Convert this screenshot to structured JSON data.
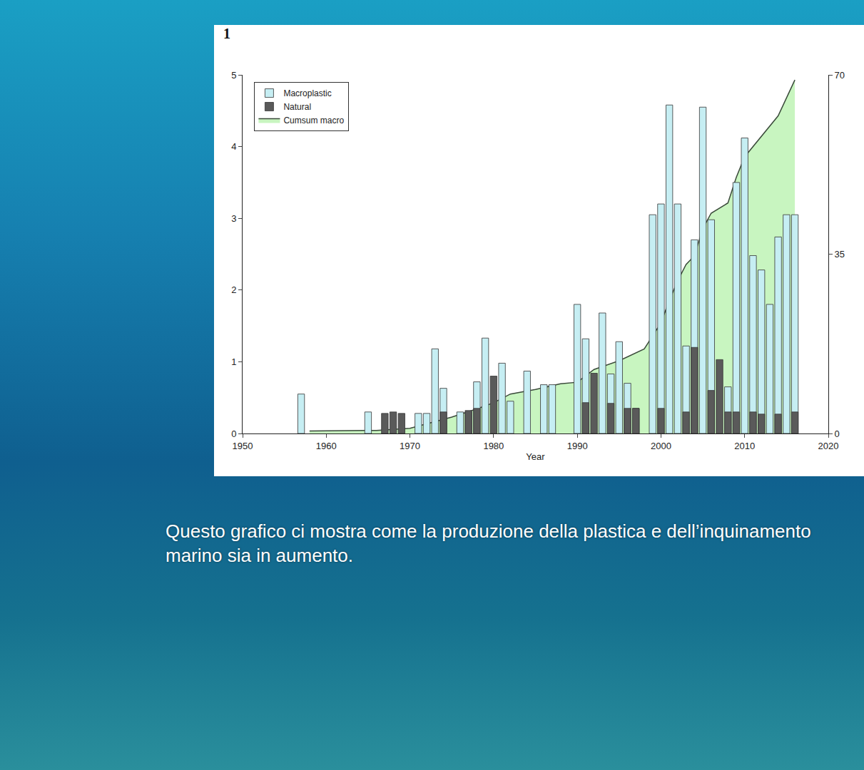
{
  "chart_data": {
    "type": "bar",
    "panel_label": "1",
    "xlabel": "Year",
    "xlim": [
      1950,
      2020
    ],
    "xticks": [
      1950,
      1960,
      1970,
      1980,
      1990,
      2000,
      2010,
      2020
    ],
    "ylim": [
      0,
      5
    ],
    "yticks": [
      0,
      1,
      2,
      3,
      4,
      5
    ],
    "y2lim": [
      0,
      70
    ],
    "y2ticks": [
      0,
      35,
      70
    ],
    "grid": false,
    "legend": "top-left",
    "series": [
      {
        "name": "Macroplastic",
        "type": "bar",
        "color": "#c6eef3",
        "x": [
          1957,
          1965,
          1971,
          1972,
          1973,
          1974,
          1976,
          1977,
          1978,
          1979,
          1981,
          1982,
          1984,
          1986,
          1987,
          1990,
          1991,
          1993,
          1994,
          1995,
          1996,
          1997,
          1999,
          2000,
          2001,
          2002,
          2003,
          2004,
          2005,
          2006,
          2008,
          2009,
          2010,
          2011,
          2012,
          2013,
          2014,
          2015,
          2016
        ],
        "values": [
          0.55,
          0.3,
          0.28,
          0.28,
          1.18,
          0.63,
          0.3,
          0.3,
          0.72,
          1.33,
          0.98,
          0.45,
          0.87,
          0.68,
          0.68,
          1.8,
          1.32,
          1.68,
          0.83,
          1.28,
          0.7,
          0.35,
          3.05,
          3.2,
          4.58,
          3.2,
          1.22,
          2.7,
          4.55,
          2.98,
          0.65,
          3.5,
          4.12,
          2.48,
          2.28,
          1.8,
          2.74,
          3.05,
          3.05
        ]
      },
      {
        "name": "Natural",
        "type": "bar",
        "color": "#5a5a5a",
        "x": [
          1967,
          1968,
          1969,
          1974,
          1977,
          1978,
          1980,
          1991,
          1992,
          1994,
          1996,
          1997,
          2000,
          2003,
          2004,
          2006,
          2007,
          2008,
          2009,
          2011,
          2012,
          2014,
          2016
        ],
        "values": [
          0.28,
          0.3,
          0.28,
          0.3,
          0.32,
          0.35,
          0.8,
          0.43,
          0.84,
          0.42,
          0.35,
          0.35,
          0.35,
          0.3,
          1.2,
          0.6,
          1.03,
          0.3,
          0.3,
          0.3,
          0.27,
          0.27,
          0.3
        ]
      },
      {
        "name": "Cumsum macro",
        "type": "area",
        "axis": "y2",
        "color": "#c8f5c0",
        "x": [
          1958,
          1966,
          1970,
          1973,
          1975,
          1978,
          1980,
          1982,
          1985,
          1988,
          1990,
          1992,
          1995,
          1998,
          2000,
          2001,
          2002,
          2003,
          2004,
          2005,
          2006,
          2008,
          2009,
          2010,
          2012,
          2013,
          2014,
          2016
        ],
        "values": [
          0.5,
          0.6,
          1.0,
          2.3,
          3.2,
          4.8,
          6.0,
          7.7,
          8.6,
          9.7,
          10.0,
          12.5,
          14.2,
          16.5,
          21.6,
          26,
          29.8,
          33,
          34.7,
          40,
          43,
          45,
          50,
          54,
          58,
          60,
          62,
          69
        ]
      }
    ],
    "caption": "Questo grafico ci mostra come la produzione della plastica e dell’inquinamento marino sia in aumento."
  }
}
